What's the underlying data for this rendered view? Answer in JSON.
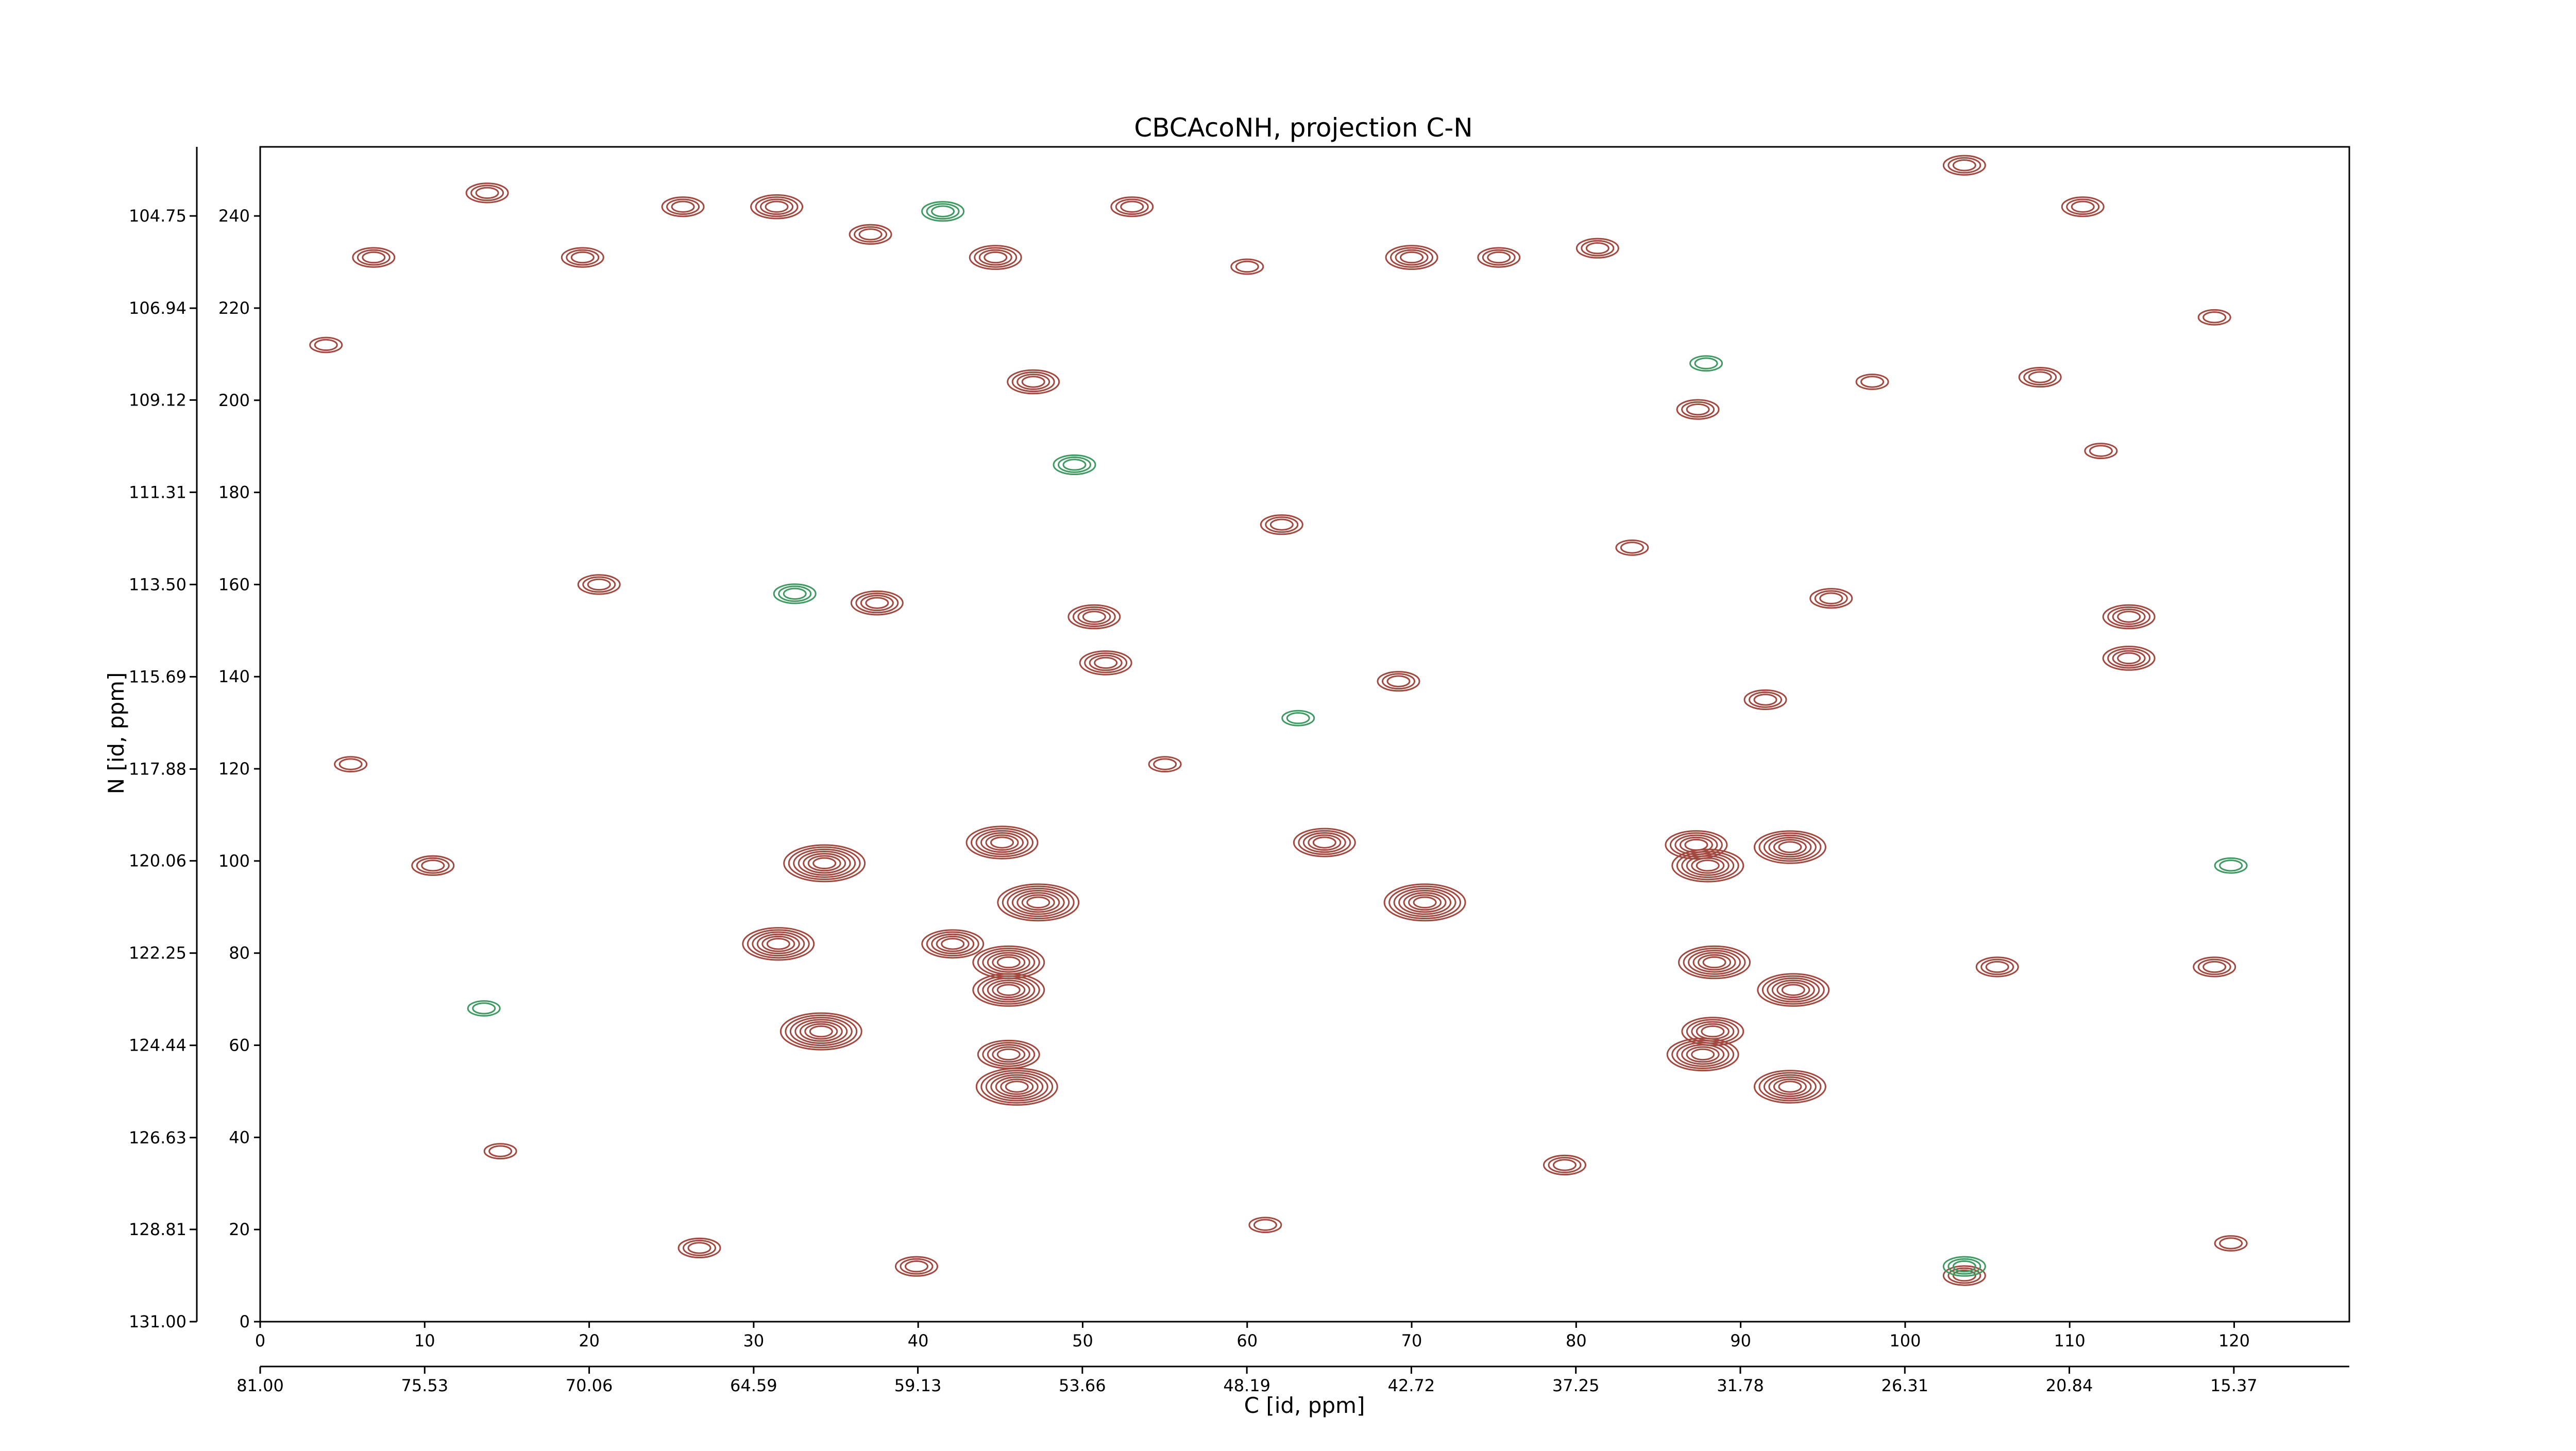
{
  "chart_data": {
    "type": "contour",
    "title": "CBCAcoNH, projection C-N",
    "x_label": "C [id, ppm]",
    "y_label": "N [id, ppm]",
    "xlim": [
      0,
      127
    ],
    "ylim": [
      0,
      255
    ],
    "xticks": [
      0,
      10,
      20,
      30,
      40,
      50,
      60,
      70,
      80,
      90,
      100,
      110,
      120
    ],
    "yticks": [
      0,
      20,
      40,
      60,
      80,
      100,
      120,
      140,
      160,
      180,
      200,
      220,
      240
    ],
    "x2lim": [
      81,
      11.53
    ],
    "x2ticks": [
      {
        "value": 81,
        "label": "81.00"
      },
      75.53,
      70.06,
      64.59,
      59.13,
      53.66,
      48.19,
      42.72,
      37.25,
      31.78,
      26.31,
      20.84,
      15.37
    ],
    "y2lim": [
      131,
      103.11
    ],
    "y2ticks": [
      {
        "value": 131,
        "label": "131.00"
      },
      128.81,
      126.63,
      124.44,
      122.25,
      120.06,
      117.88,
      115.69,
      {
        "value": 113.5,
        "label": "113.50"
      },
      111.31,
      109.12,
      106.94,
      104.75
    ],
    "series": [
      {
        "color": "#a3483f",
        "x": [
          34.3,
          31.5,
          34.1,
          45.1,
          47.3,
          42.1,
          45.5,
          45.5,
          45.5,
          46,
          64.7,
          70.8,
          87.3,
          88,
          88.4,
          93,
          93.2,
          88.3,
          87.7,
          93,
          113.6,
          113.6,
          70,
          50.7,
          51.4,
          47,
          37.5,
          44.7,
          31.4,
          13.8,
          6.9,
          4,
          19.6,
          25.7,
          37.1,
          53,
          60,
          75.3,
          81.3,
          103.6,
          110.8,
          118.8,
          108.2,
          98,
          87.4,
          83.4,
          62.1,
          20.6,
          5.5,
          10.5,
          14.6,
          26.7,
          39.9,
          61.1,
          79.3,
          103.6,
          119.8,
          105.6,
          118.8,
          69.2,
          91.5,
          55,
          95.5,
          111.9
        ],
        "y": [
          99.5,
          82,
          63,
          104,
          91,
          82,
          78,
          72,
          58,
          51,
          104,
          91,
          103.5,
          99,
          78,
          103,
          72,
          63,
          58,
          51,
          153,
          144,
          231,
          153,
          143,
          204,
          156,
          231,
          242,
          245,
          231,
          212,
          231,
          242,
          236,
          242,
          229,
          231,
          233,
          251,
          242,
          218,
          205,
          204,
          198,
          168,
          173,
          160,
          121,
          99,
          37,
          16,
          12,
          21,
          34,
          10,
          17,
          77,
          77,
          139,
          135,
          121,
          157,
          189
        ],
        "levels": [
          7,
          6,
          7,
          6,
          7,
          5,
          6,
          6,
          5,
          7,
          5,
          7,
          5,
          6,
          6,
          6,
          6,
          5,
          6,
          6,
          4,
          4,
          4,
          4,
          4,
          4,
          4,
          4,
          4,
          3,
          3,
          2,
          3,
          3,
          3,
          3,
          2,
          3,
          3,
          3,
          3,
          2,
          3,
          2,
          3,
          2,
          3,
          3,
          2,
          3,
          2,
          3,
          3,
          2,
          3,
          3,
          2,
          3,
          3,
          3,
          3,
          2,
          3,
          2
        ]
      },
      {
        "color": "#3f9a62",
        "x": [
          41.5,
          32.5,
          49.5,
          87.9,
          103.6,
          119.8,
          63.1,
          13.6
        ],
        "y": [
          241,
          158,
          186,
          208,
          12,
          99,
          131,
          68
        ],
        "levels": [
          3,
          3,
          3,
          2,
          3,
          2,
          2,
          2
        ]
      }
    ]
  }
}
